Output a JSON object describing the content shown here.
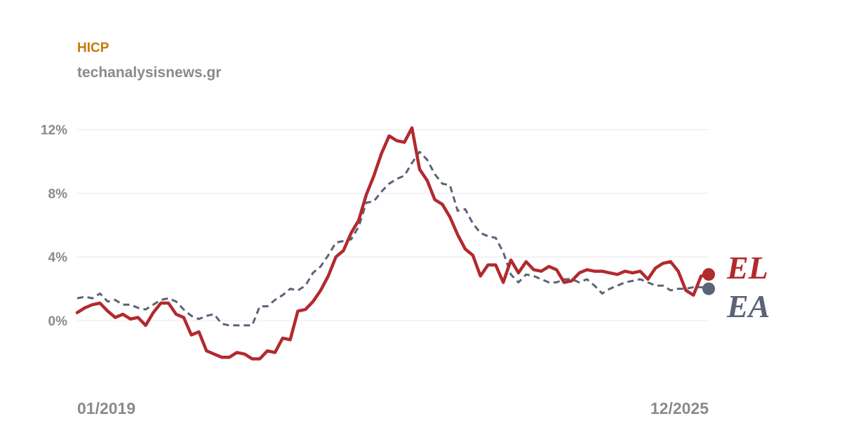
{
  "header": {
    "title": "HICP",
    "source": "techanalysisnews.gr"
  },
  "chart_data": {
    "type": "line",
    "title": "HICP",
    "xlabel": "",
    "ylabel": "",
    "ylim": [
      -4.5,
      12.5
    ],
    "yticks": [
      0,
      4,
      8,
      12
    ],
    "ytick_labels": [
      "0%",
      "4%",
      "8%",
      "12%"
    ],
    "x_start_label": "01/2019",
    "x_end_label": "12/2025",
    "grid": true,
    "colors": {
      "EL": "#b22a2e",
      "EA": "#5a6377",
      "grid": "#e8e8e8",
      "title": "#c8790a",
      "text": "#8a8a8a"
    },
    "series": [
      {
        "name": "EL",
        "style": "solid",
        "values": [
          0.5,
          0.8,
          1.0,
          1.1,
          0.6,
          0.2,
          0.4,
          0.1,
          0.2,
          -0.3,
          0.5,
          1.1,
          1.1,
          0.4,
          0.2,
          -0.9,
          -0.7,
          -1.9,
          -2.1,
          -2.3,
          -2.3,
          -2.0,
          -2.1,
          -2.4,
          -2.4,
          -1.9,
          -2.0,
          -1.1,
          -1.2,
          0.6,
          0.7,
          1.2,
          1.9,
          2.8,
          4.0,
          4.4,
          5.5,
          6.3,
          7.9,
          9.1,
          10.5,
          11.6,
          11.3,
          11.2,
          12.1,
          9.5,
          8.8,
          7.6,
          7.3,
          6.5,
          5.4,
          4.5,
          4.1,
          2.8,
          3.5,
          3.5,
          2.4,
          3.8,
          3.0,
          3.7,
          3.2,
          3.1,
          3.4,
          3.2,
          2.4,
          2.5,
          3.0,
          3.2,
          3.1,
          3.1,
          3.0,
          2.9,
          3.1,
          3.0,
          3.1,
          2.6,
          3.3,
          3.6,
          3.7,
          3.1,
          1.9,
          1.6,
          2.8,
          2.9
        ]
      },
      {
        "name": "EA",
        "style": "dashed",
        "values": [
          1.4,
          1.5,
          1.4,
          1.7,
          1.2,
          1.3,
          1.0,
          1.0,
          0.8,
          0.7,
          1.0,
          1.3,
          1.4,
          1.2,
          0.7,
          0.3,
          0.1,
          0.3,
          0.4,
          -0.2,
          -0.3,
          -0.3,
          -0.3,
          -0.3,
          0.9,
          0.9,
          1.3,
          1.6,
          2.0,
          1.9,
          2.2,
          3.0,
          3.4,
          4.1,
          4.9,
          5.0,
          5.1,
          5.9,
          7.4,
          7.5,
          8.1,
          8.6,
          8.9,
          9.1,
          9.9,
          10.6,
          10.1,
          9.2,
          8.6,
          8.5,
          6.9,
          7.0,
          6.1,
          5.5,
          5.3,
          5.2,
          4.3,
          2.9,
          2.4,
          2.9,
          2.8,
          2.6,
          2.4,
          2.4,
          2.6,
          2.6,
          2.4,
          2.6,
          2.2,
          1.7,
          2.0,
          2.2,
          2.4,
          2.5,
          2.6,
          2.4,
          2.2,
          2.2,
          1.9,
          2.0,
          2.0,
          2.1,
          2.1,
          2.0
        ]
      }
    ]
  }
}
